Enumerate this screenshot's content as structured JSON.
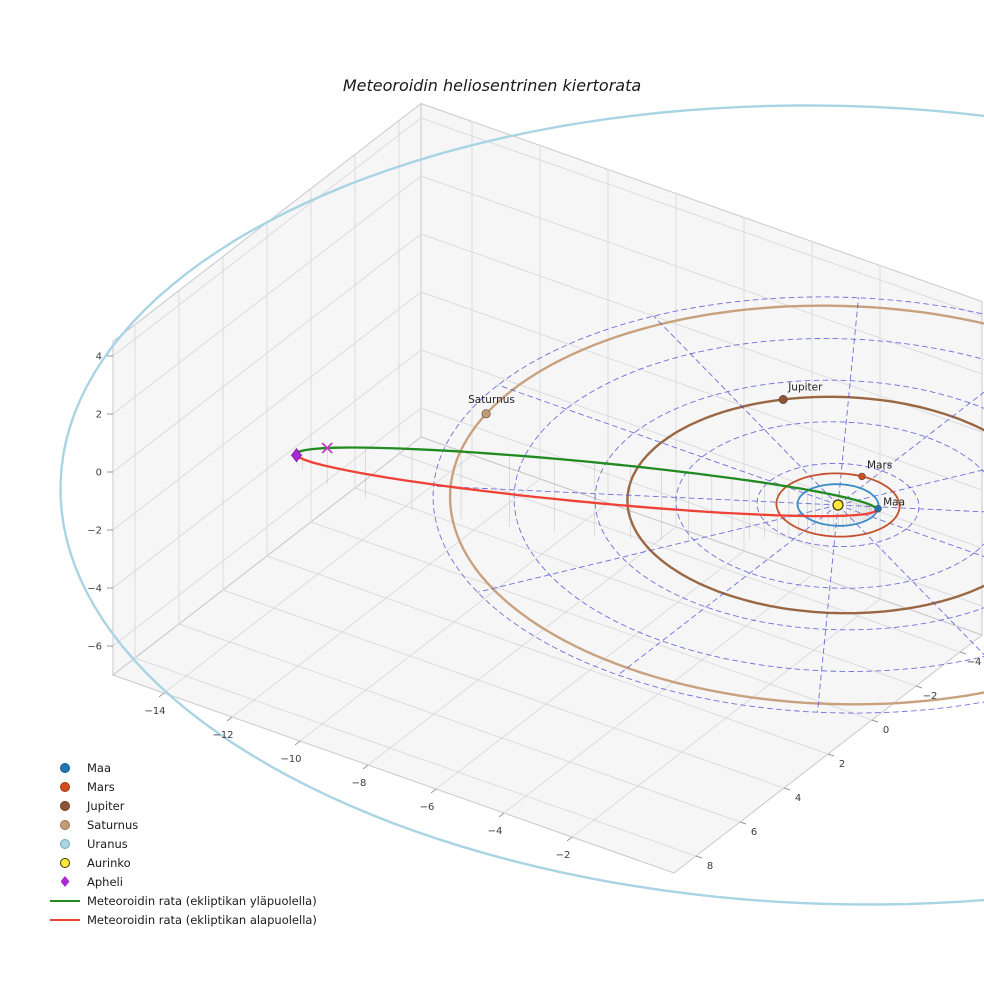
{
  "chart_data": {
    "type": "line",
    "projection": "3d",
    "title": "Meteoroidin heliosentrinen kiertorata",
    "unit": "AU",
    "axes": {
      "x": {
        "ticks": [
          -14,
          -12,
          -10,
          -8,
          -6,
          -4,
          -2
        ],
        "range": [
          -15.5,
          1.0
        ]
      },
      "y": {
        "ticks": [
          -4,
          -2,
          0,
          2,
          4,
          6,
          8
        ],
        "range": [
          -5,
          9
        ]
      },
      "z": {
        "ticks": [
          -6,
          -4,
          -2,
          0,
          2,
          4
        ],
        "range": [
          -7,
          4.5
        ]
      }
    },
    "polar_grid": {
      "radii_au": [
        2,
        4,
        6,
        8,
        10
      ],
      "spoke_step_deg": 30,
      "color": "#4141d0"
    },
    "sun": {
      "label": "Aurinko",
      "color": "#ffe83d",
      "edge_color": "#3a3a00"
    },
    "bodies": [
      {
        "name": "Maa",
        "orbit_radius_au": 1.0,
        "position_angle_deg": -25,
        "color": "#1f77b4",
        "orbit_color": "#3b8bc4",
        "orbit_width": 1.8,
        "dot_r": 3.4,
        "show_label": true,
        "label_offset": [
          5,
          -3
        ]
      },
      {
        "name": "Mars",
        "orbit_radius_au": 1.52,
        "position_angle_deg": -100,
        "color": "#cf4e1e",
        "orbit_color": "#c3512c",
        "orbit_width": 1.8,
        "dot_r": 3.4,
        "show_label": true,
        "label_offset": [
          5,
          -8
        ]
      },
      {
        "name": "Jupiter",
        "orbit_radius_au": 5.2,
        "position_angle_deg": -138,
        "color": "#8f5434",
        "orbit_color": "#9a6743",
        "orbit_width": 2.4,
        "dot_r": 4.2,
        "show_label": true,
        "label_offset": [
          5,
          -9
        ]
      },
      {
        "name": "Saturnus",
        "orbit_radius_au": 9.58,
        "position_angle_deg": 172,
        "color": "#c59b74",
        "orbit_color": "#c8a27f",
        "orbit_width": 2.4,
        "dot_r": 4.2,
        "show_label": true,
        "label_offset": [
          -18,
          -11
        ]
      },
      {
        "name": "Uranus",
        "orbit_radius_au": 19.2,
        "position_angle_deg": 0,
        "color": "#a9d4e4",
        "orbit_color": "#a9d4e4",
        "orbit_width": 2.4,
        "dot_r": 0,
        "show_label": false,
        "label_offset": [
          0,
          0
        ]
      }
    ],
    "meteoroid": {
      "perihelion_au": 0.95,
      "aphelion_au": 13.5,
      "eccentricity": 0.87,
      "inclination_deg": 45,
      "aphelion_longitude_deg": 155,
      "above_ecliptic_color": "#218a21",
      "below_ecliptic_color": "#ef4135",
      "aphelion_marker": {
        "label": "Apheli",
        "shape": "diamond",
        "color": "#a928d6",
        "edge_color": "#7d18a0"
      },
      "position_marker": {
        "shape": "x",
        "color": "#c738c7",
        "true_anomaly_deg": 172
      }
    },
    "legend": [
      {
        "label": "Maa",
        "marker": "dot",
        "color": "#1f77b4",
        "edge": "#155a8a"
      },
      {
        "label": "Mars",
        "marker": "dot",
        "color": "#cf4e1e",
        "edge": "#9c3a15"
      },
      {
        "label": "Jupiter",
        "marker": "dot",
        "color": "#8f5434",
        "edge": "#6d3f27"
      },
      {
        "label": "Saturnus",
        "marker": "dot",
        "color": "#c59b74",
        "edge": "#997653"
      },
      {
        "label": "Uranus",
        "marker": "dot",
        "color": "#a9d4e4",
        "edge": "#76a8bd"
      },
      {
        "label": "Aurinko",
        "marker": "dot",
        "color": "#ffe83d",
        "edge": "#3a3a00"
      },
      {
        "label": "Apheli",
        "marker": "diamond",
        "color": "#a928d6"
      },
      {
        "label": "Meteoroidin rata (ekliptikan yläpuolella)",
        "marker": "line",
        "color": "#218a21"
      },
      {
        "label": "Meteoroidin rata (ekliptikan alapuolella)",
        "marker": "line",
        "color": "#ef4135"
      }
    ]
  }
}
